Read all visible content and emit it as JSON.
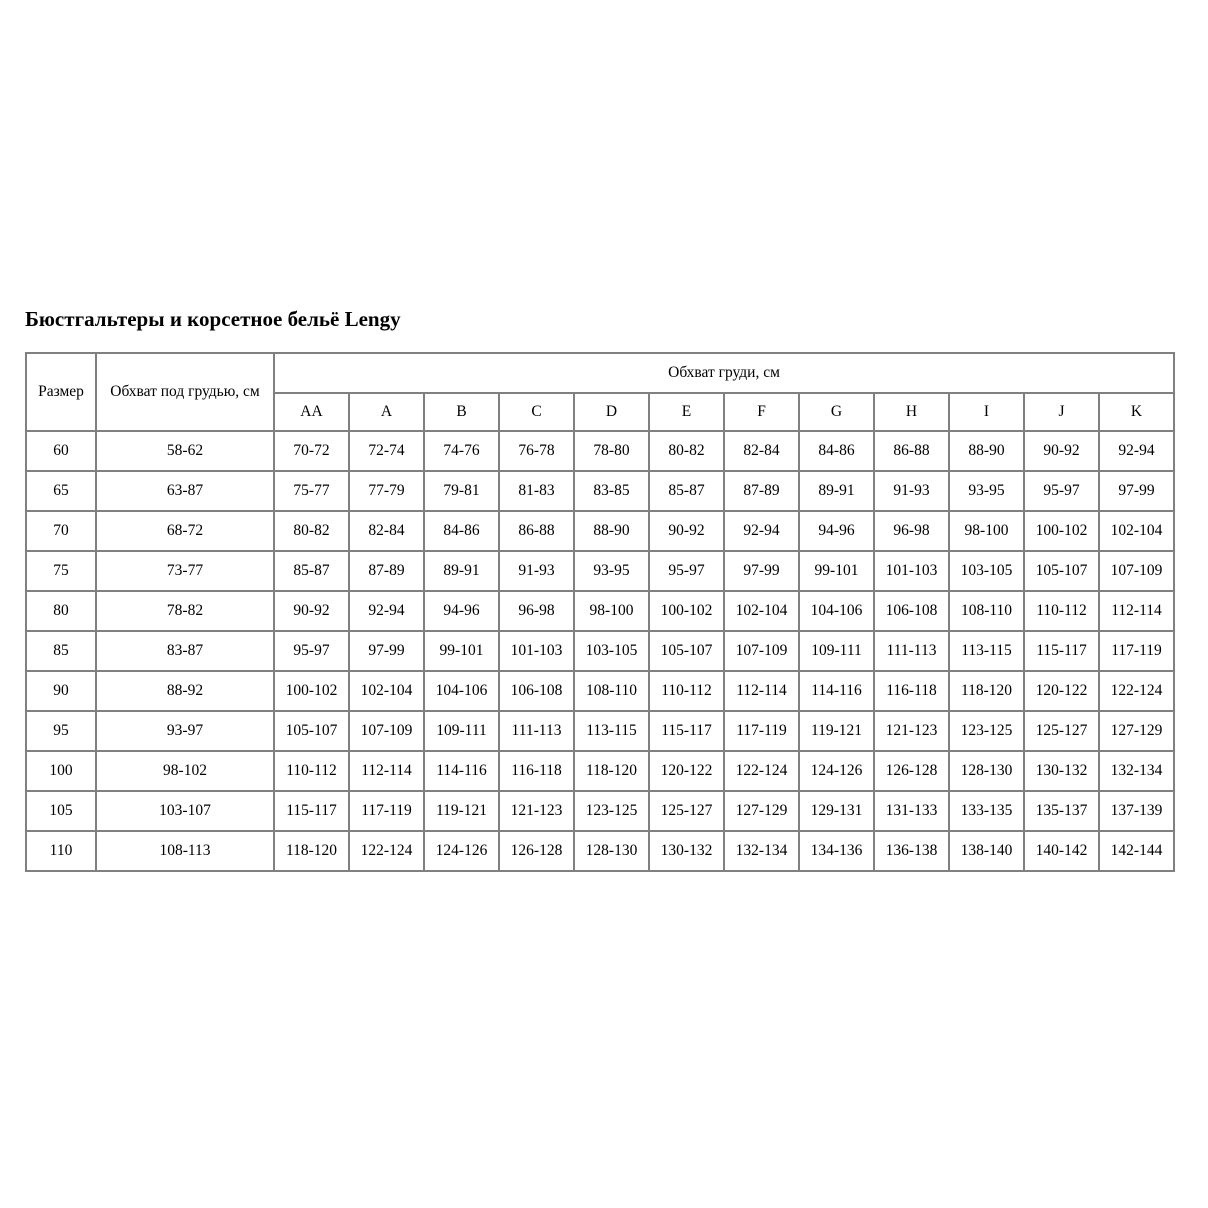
{
  "page": {
    "title": "Бюстгальтеры и корсетное бельё Lengy"
  },
  "colors": {
    "background": "#ffffff",
    "table_border": "#808080",
    "text": "#000000"
  },
  "table": {
    "col_size_label": "Размер",
    "col_underbust_label": "Обхват под грудью, см",
    "bust_group_label": "Обхват груди, см",
    "cup_labels": [
      "AA",
      "A",
      "B",
      "C",
      "D",
      "E",
      "F",
      "G",
      "H",
      "I",
      "J",
      "K"
    ],
    "rows": [
      {
        "size": "60",
        "underbust": "58-62",
        "cups": [
          "70-72",
          "72-74",
          "74-76",
          "76-78",
          "78-80",
          "80-82",
          "82-84",
          "84-86",
          "86-88",
          "88-90",
          "90-92",
          "92-94"
        ]
      },
      {
        "size": "65",
        "underbust": "63-87",
        "cups": [
          "75-77",
          "77-79",
          "79-81",
          "81-83",
          "83-85",
          "85-87",
          "87-89",
          "89-91",
          "91-93",
          "93-95",
          "95-97",
          "97-99"
        ]
      },
      {
        "size": "70",
        "underbust": "68-72",
        "cups": [
          "80-82",
          "82-84",
          "84-86",
          "86-88",
          "88-90",
          "90-92",
          "92-94",
          "94-96",
          "96-98",
          "98-100",
          "100-102",
          "102-104"
        ]
      },
      {
        "size": "75",
        "underbust": "73-77",
        "cups": [
          "85-87",
          "87-89",
          "89-91",
          "91-93",
          "93-95",
          "95-97",
          "97-99",
          "99-101",
          "101-103",
          "103-105",
          "105-107",
          "107-109"
        ]
      },
      {
        "size": "80",
        "underbust": "78-82",
        "cups": [
          "90-92",
          "92-94",
          "94-96",
          "96-98",
          "98-100",
          "100-102",
          "102-104",
          "104-106",
          "106-108",
          "108-110",
          "110-112",
          "112-114"
        ]
      },
      {
        "size": "85",
        "underbust": "83-87",
        "cups": [
          "95-97",
          "97-99",
          "99-101",
          "101-103",
          "103-105",
          "105-107",
          "107-109",
          "109-111",
          "111-113",
          "113-115",
          "115-117",
          "117-119"
        ]
      },
      {
        "size": "90",
        "underbust": "88-92",
        "cups": [
          "100-102",
          "102-104",
          "104-106",
          "106-108",
          "108-110",
          "110-112",
          "112-114",
          "114-116",
          "116-118",
          "118-120",
          "120-122",
          "122-124"
        ]
      },
      {
        "size": "95",
        "underbust": "93-97",
        "cups": [
          "105-107",
          "107-109",
          "109-111",
          "111-113",
          "113-115",
          "115-117",
          "117-119",
          "119-121",
          "121-123",
          "123-125",
          "125-127",
          "127-129"
        ]
      },
      {
        "size": "100",
        "underbust": "98-102",
        "cups": [
          "110-112",
          "112-114",
          "114-116",
          "116-118",
          "118-120",
          "120-122",
          "122-124",
          "124-126",
          "126-128",
          "128-130",
          "130-132",
          "132-134"
        ]
      },
      {
        "size": "105",
        "underbust": "103-107",
        "cups": [
          "115-117",
          "117-119",
          "119-121",
          "121-123",
          "123-125",
          "125-127",
          "127-129",
          "129-131",
          "131-133",
          "133-135",
          "135-137",
          "137-139"
        ]
      },
      {
        "size": "110",
        "underbust": "108-113",
        "cups": [
          "118-120",
          "122-124",
          "124-126",
          "126-128",
          "128-130",
          "130-132",
          "132-134",
          "134-136",
          "136-138",
          "138-140",
          "140-142",
          "142-144"
        ]
      }
    ]
  }
}
